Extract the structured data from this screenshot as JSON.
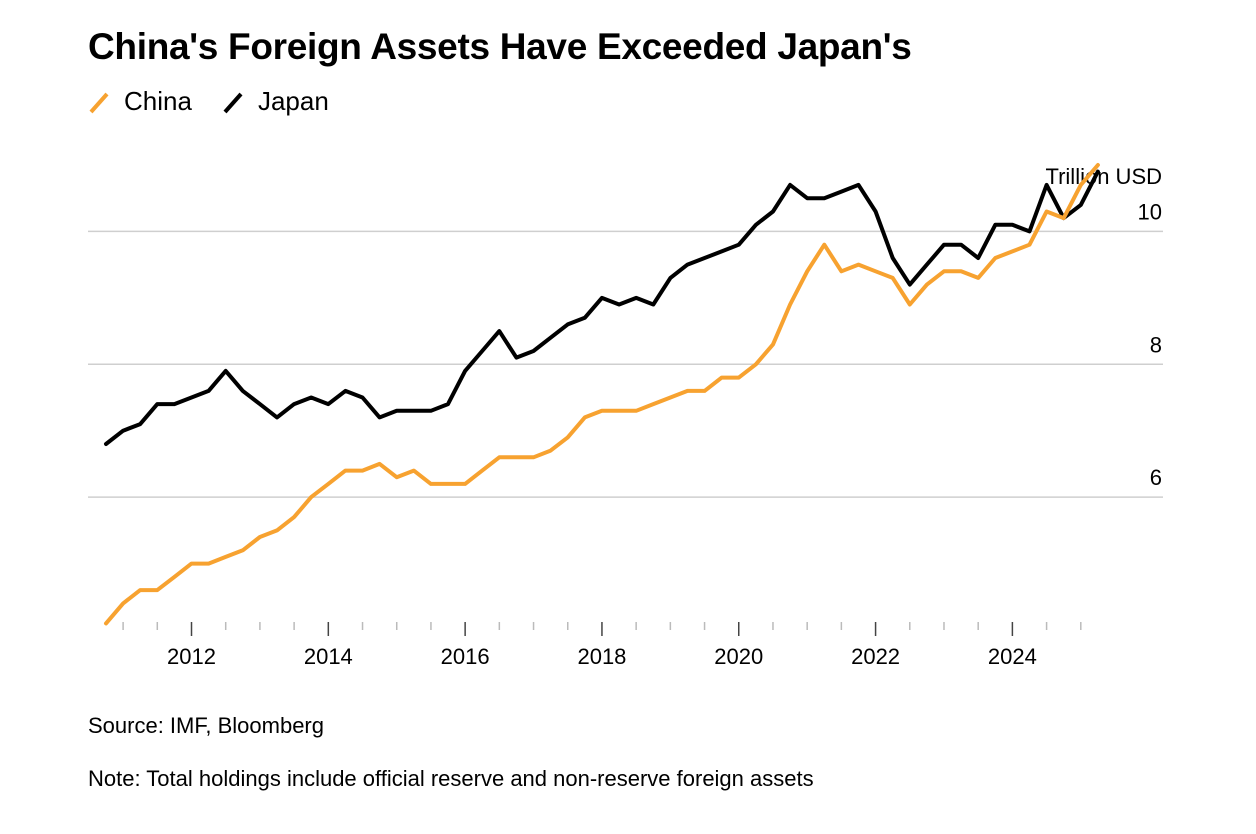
{
  "chart_data": {
    "type": "line",
    "title": "China's Foreign Assets Have Exceeded Japan's",
    "unit_label": "Trillion USD",
    "xlabel": "",
    "ylabel": "Trillion USD",
    "xlim": [
      2010.75,
      2025.5
    ],
    "ylim": [
      4.0,
      11.0
    ],
    "y_ticks": [
      6,
      8,
      10
    ],
    "y_tick_labels": [
      "6",
      "8",
      "10"
    ],
    "x_ticks": [
      2012,
      2014,
      2016,
      2018,
      2020,
      2022,
      2024
    ],
    "x_tick_labels": [
      "2012",
      "2014",
      "2016",
      "2018",
      "2020",
      "2022",
      "2024"
    ],
    "legend": [
      "China",
      "Japan"
    ],
    "grid": true,
    "series": [
      {
        "name": "China",
        "color": "#f7a230",
        "x": [
          2010.75,
          2011.0,
          2011.25,
          2011.5,
          2011.75,
          2012.0,
          2012.25,
          2012.5,
          2012.75,
          2013.0,
          2013.25,
          2013.5,
          2013.75,
          2014.0,
          2014.25,
          2014.5,
          2014.75,
          2015.0,
          2015.25,
          2015.5,
          2015.75,
          2016.0,
          2016.25,
          2016.5,
          2016.75,
          2017.0,
          2017.25,
          2017.5,
          2017.75,
          2018.0,
          2018.25,
          2018.5,
          2018.75,
          2019.0,
          2019.25,
          2019.5,
          2019.75,
          2020.0,
          2020.25,
          2020.5,
          2020.75,
          2021.0,
          2021.25,
          2021.5,
          2021.75,
          2022.0,
          2022.25,
          2022.5,
          2022.75,
          2023.0,
          2023.25,
          2023.5,
          2023.75,
          2024.0,
          2024.25,
          2024.5,
          2024.75,
          2025.0,
          2025.25
        ],
        "values": [
          4.1,
          4.4,
          4.6,
          4.6,
          4.8,
          5.0,
          5.0,
          5.1,
          5.2,
          5.4,
          5.5,
          5.7,
          6.0,
          6.2,
          6.4,
          6.4,
          6.5,
          6.3,
          6.4,
          6.2,
          6.2,
          6.2,
          6.4,
          6.6,
          6.6,
          6.6,
          6.7,
          6.9,
          7.2,
          7.3,
          7.3,
          7.3,
          7.4,
          7.5,
          7.6,
          7.6,
          7.8,
          7.8,
          8.0,
          8.3,
          8.9,
          9.4,
          9.8,
          9.4,
          9.5,
          9.4,
          9.3,
          8.9,
          9.2,
          9.4,
          9.4,
          9.3,
          9.6,
          9.7,
          9.8,
          10.3,
          10.2,
          10.7,
          11.0
        ]
      },
      {
        "name": "Japan",
        "color": "#000000",
        "x": [
          2010.75,
          2011.0,
          2011.25,
          2011.5,
          2011.75,
          2012.0,
          2012.25,
          2012.5,
          2012.75,
          2013.0,
          2013.25,
          2013.5,
          2013.75,
          2014.0,
          2014.25,
          2014.5,
          2014.75,
          2015.0,
          2015.25,
          2015.5,
          2015.75,
          2016.0,
          2016.25,
          2016.5,
          2016.75,
          2017.0,
          2017.25,
          2017.5,
          2017.75,
          2018.0,
          2018.25,
          2018.5,
          2018.75,
          2019.0,
          2019.25,
          2019.5,
          2019.75,
          2020.0,
          2020.25,
          2020.5,
          2020.75,
          2021.0,
          2021.25,
          2021.5,
          2021.75,
          2022.0,
          2022.25,
          2022.5,
          2022.75,
          2023.0,
          2023.25,
          2023.5,
          2023.75,
          2024.0,
          2024.25,
          2024.5,
          2024.75,
          2025.0,
          2025.25
        ],
        "values": [
          6.8,
          7.0,
          7.1,
          7.4,
          7.4,
          7.5,
          7.6,
          7.9,
          7.6,
          7.4,
          7.2,
          7.4,
          7.5,
          7.4,
          7.6,
          7.5,
          7.2,
          7.3,
          7.3,
          7.3,
          7.4,
          7.9,
          8.2,
          8.5,
          8.1,
          8.2,
          8.4,
          8.6,
          8.7,
          9.0,
          8.9,
          9.0,
          8.9,
          9.3,
          9.5,
          9.6,
          9.7,
          9.8,
          10.1,
          10.3,
          10.7,
          10.5,
          10.5,
          10.6,
          10.7,
          10.3,
          9.6,
          9.2,
          9.5,
          9.8,
          9.8,
          9.6,
          10.1,
          10.1,
          10.0,
          10.7,
          10.2,
          10.4,
          10.9
        ]
      }
    ]
  },
  "footer": {
    "source": "Source: IMF, Bloomberg",
    "note": "Note: Total holdings include official reserve and non-reserve foreign assets"
  }
}
